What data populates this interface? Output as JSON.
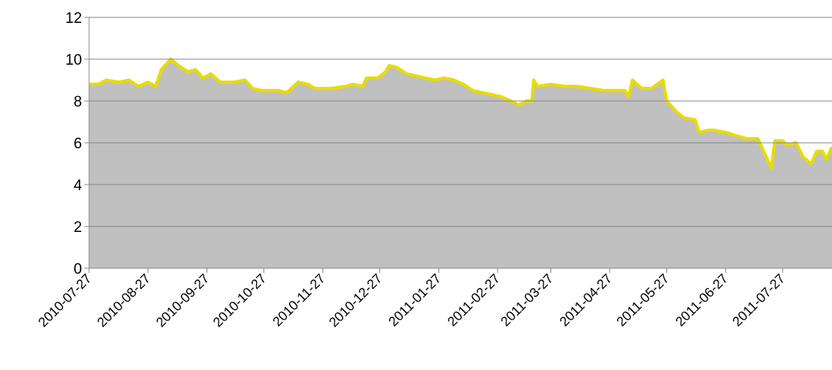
{
  "chart_data": {
    "type": "area",
    "x": [
      "2010-07-27",
      "2010-08-01",
      "2010-08-05",
      "2010-08-12",
      "2010-08-17",
      "2010-08-22",
      "2010-08-27",
      "2010-08-31",
      "2010-09-03",
      "2010-09-08",
      "2010-09-12",
      "2010-09-17",
      "2010-09-21",
      "2010-09-25",
      "2010-09-29",
      "2010-10-04",
      "2010-10-11",
      "2010-10-17",
      "2010-10-21",
      "2010-10-26",
      "2010-11-04",
      "2010-11-08",
      "2010-11-14",
      "2010-11-19",
      "2010-11-23",
      "2010-12-01",
      "2010-12-09",
      "2010-12-13",
      "2010-12-18",
      "2010-12-20",
      "2010-12-26",
      "2010-12-30",
      "2011-01-01",
      "2011-01-05",
      "2011-01-10",
      "2011-01-15",
      "2011-01-20",
      "2011-01-25",
      "2011-01-30",
      "2011-02-04",
      "2011-02-09",
      "2011-02-14",
      "2011-02-19",
      "2011-02-24",
      "2011-03-01",
      "2011-03-06",
      "2011-03-10",
      "2011-03-14",
      "2011-03-17",
      "2011-03-18",
      "2011-03-20",
      "2011-03-27",
      "2011-04-03",
      "2011-04-10",
      "2011-04-17",
      "2011-04-24",
      "2011-05-01",
      "2011-05-05",
      "2011-05-07",
      "2011-05-09",
      "2011-05-14",
      "2011-05-19",
      "2011-05-25",
      "2011-05-27",
      "2011-06-01",
      "2011-06-05",
      "2011-06-11",
      "2011-06-13",
      "2011-06-18",
      "2011-06-21",
      "2011-06-27",
      "2011-07-04",
      "2011-07-08",
      "2011-07-14",
      "2011-07-18",
      "2011-07-21",
      "2011-07-23",
      "2011-07-27",
      "2011-07-29",
      "2011-08-03",
      "2011-08-07",
      "2011-08-11",
      "2011-08-14",
      "2011-08-17",
      "2011-08-19",
      "2011-08-22"
    ],
    "series": [
      {
        "color": "#e8dc00",
        "fill": "#c0c0c0",
        "values": [
          8.8,
          8.8,
          9.0,
          8.9,
          9.0,
          8.7,
          8.9,
          8.7,
          9.5,
          10.0,
          9.7,
          9.4,
          9.5,
          9.1,
          9.3,
          8.9,
          8.9,
          9.0,
          8.6,
          8.5,
          8.5,
          8.4,
          8.9,
          8.8,
          8.6,
          8.6,
          8.7,
          8.8,
          8.7,
          9.1,
          9.1,
          9.4,
          9.7,
          9.6,
          9.3,
          9.2,
          9.1,
          9.0,
          9.1,
          9.0,
          8.8,
          8.5,
          8.4,
          8.3,
          8.2,
          8.0,
          7.8,
          8.0,
          8.0,
          9.0,
          8.7,
          8.8,
          8.7,
          8.7,
          8.6,
          8.5,
          8.5,
          8.5,
          8.2,
          9.0,
          8.6,
          8.6,
          9.0,
          8.0,
          7.5,
          7.2,
          7.1,
          6.5,
          6.6,
          6.6,
          6.5,
          6.3,
          6.2,
          6.2,
          5.4,
          4.8,
          6.1,
          6.1,
          5.9,
          6.0,
          5.3,
          5.0,
          5.6,
          5.6,
          5.2,
          5.8
        ]
      }
    ],
    "xlim": [
      "2010-07-27",
      "2011-08-22"
    ],
    "xticks": [
      "2010-07-27",
      "2010-08-27",
      "2010-09-27",
      "2010-10-27",
      "2010-11-27",
      "2010-12-27",
      "2011-01-27",
      "2011-02-27",
      "2011-03-27",
      "2011-04-27",
      "2011-05-27",
      "2011-06-27",
      "2011-07-27"
    ],
    "ylim": [
      0,
      12
    ],
    "yticks": [
      0,
      2,
      4,
      6,
      8,
      10,
      12
    ],
    "grid": true
  }
}
